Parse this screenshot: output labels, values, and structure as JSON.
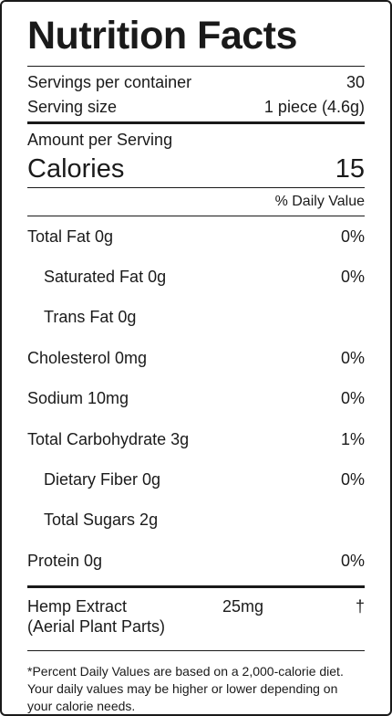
{
  "title": "Nutrition Facts",
  "servings": {
    "label": "Servings per container",
    "value": "30"
  },
  "serving_size": {
    "label": "Serving size",
    "value": "1 piece (4.6g)"
  },
  "amount_per_serving": "Amount per Serving",
  "calories": {
    "label": "Calories",
    "value": "15"
  },
  "daily_value_header": "% Daily Value",
  "nutrients": [
    {
      "label": "Total Fat 0g",
      "dv": "0%"
    },
    {
      "label": "Saturated Fat 0g",
      "dv": "0%"
    },
    {
      "label": "Trans Fat 0g",
      "dv": ""
    },
    {
      "label": "Cholesterol 0mg",
      "dv": "0%"
    },
    {
      "label": "Sodium 10mg",
      "dv": "0%"
    },
    {
      "label": "Total Carbohydrate 3g",
      "dv": "1%"
    },
    {
      "label": "Dietary Fiber 0g",
      "dv": "0%"
    },
    {
      "label": "Total Sugars 2g",
      "dv": ""
    },
    {
      "label": "Protein 0g",
      "dv": "0%"
    }
  ],
  "hemp": {
    "name_line1": "Hemp Extract",
    "name_line2": "(Aerial Plant Parts)",
    "amount": "25mg",
    "mark": "†"
  },
  "footnote": "*Percent Daily Values are based on a 2,000-calorie diet. Your daily values may be higher or lower depending on your calorie needs."
}
